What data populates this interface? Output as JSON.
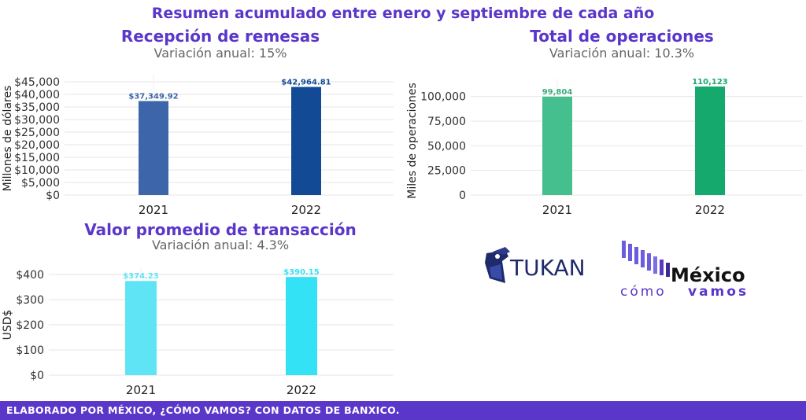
{
  "main_title": "Resumen acumulado entre enero y septiembre de cada año",
  "footer_text": "ELABORADO POR MÉXICO, ¿CÓMO VAMOS? CON DATOS DE BANXICO.",
  "logos": {
    "tukan_text": "TUKAN",
    "mcv_text_top": "México",
    "mcv_text_bottom_1": "cómo",
    "mcv_text_bottom_2": "vamos"
  },
  "chart_data": [
    {
      "type": "bar",
      "title": "Recepción de remesas",
      "subtitle": "Variación anual: 15%",
      "ylabel": "Millones de dólares",
      "xlabel": "",
      "categories": [
        "2021",
        "2022"
      ],
      "values": [
        37349.92,
        42964.81
      ],
      "value_labels": [
        "$37,349.92",
        "$42,964.81"
      ],
      "ylim": [
        0,
        45000
      ],
      "yticks": [
        0,
        5000,
        10000,
        15000,
        20000,
        25000,
        30000,
        35000,
        40000,
        45000
      ],
      "ytick_labels": [
        "$0",
        "$5,000",
        "$10,000",
        "$15,000",
        "$20,000",
        "$25,000",
        "$30,000",
        "$35,000",
        "$40,000",
        "$45,000"
      ],
      "colors": [
        "#3d65a9",
        "#134a96"
      ],
      "label_colors": [
        "#3d65a9",
        "#134a96"
      ],
      "grid": true
    },
    {
      "type": "bar",
      "title": "Total de operaciones",
      "subtitle": "Variación anual: 10.3%",
      "ylabel": "Miles de operaciones",
      "xlabel": "",
      "categories": [
        "2021",
        "2022"
      ],
      "values": [
        99804,
        110123
      ],
      "value_labels": [
        "99,804",
        "110,123"
      ],
      "ylim": [
        0,
        110123
      ],
      "yticks": [
        0,
        25000,
        50000,
        75000,
        100000
      ],
      "ytick_labels": [
        "0",
        "25,000",
        "50,000",
        "75,000",
        "100,000"
      ],
      "colors": [
        "#45bf8e",
        "#16a96e"
      ],
      "label_colors": [
        "#37ad7d",
        "#16a96e"
      ],
      "grid": true
    },
    {
      "type": "bar",
      "title": "Valor promedio de transacción",
      "subtitle": "Variación anual: 4.3%",
      "ylabel": "USD$",
      "xlabel": "",
      "categories": [
        "2021",
        "2022"
      ],
      "values": [
        374.23,
        390.15
      ],
      "value_labels": [
        "$374.23",
        "$390.15"
      ],
      "ylim": [
        0,
        400
      ],
      "yticks": [
        0,
        100,
        200,
        300,
        400
      ],
      "ytick_labels": [
        "$0",
        "$100",
        "$200",
        "$300",
        "$400"
      ],
      "colors": [
        "#5fe4f5",
        "#34e2f6"
      ],
      "label_colors": [
        "#5fe4f5",
        "#34e2f6"
      ],
      "grid": true
    }
  ]
}
